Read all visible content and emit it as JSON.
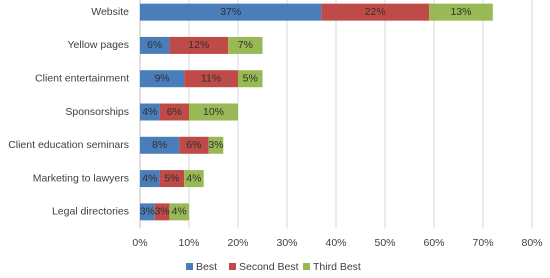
{
  "chart_data": {
    "type": "stacked-bar-horizontal",
    "categories": [
      "Website",
      "Yellow pages",
      "Client entertainment",
      "Sponsorships",
      "Client education seminars",
      "Marketing to lawyers",
      "Legal directories"
    ],
    "series": [
      {
        "name": "Best",
        "color": "#4a7ebb",
        "values": [
          37,
          6,
          9,
          4,
          8,
          4,
          3
        ],
        "value_labels": [
          "37%",
          "6%",
          "9%",
          "4%",
          "8%",
          "4%",
          "3%"
        ]
      },
      {
        "name": "Second Best",
        "color": "#be4b48",
        "values": [
          22,
          12,
          11,
          6,
          6,
          5,
          3
        ],
        "value_labels": [
          "22%",
          "12%",
          "11%",
          "6%",
          "6%",
          "5%",
          "3%"
        ]
      },
      {
        "name": "Third Best",
        "color": "#98b954",
        "values": [
          13,
          7,
          5,
          10,
          3,
          4,
          4
        ],
        "value_labels": [
          "13%",
          "7%",
          "5%",
          "10%",
          "3%",
          "4%",
          "4%"
        ]
      }
    ],
    "xlim": [
      0,
      80
    ],
    "xticks": [
      {
        "value": 0,
        "label": "0%"
      },
      {
        "value": 10,
        "label": "10%"
      },
      {
        "value": 20,
        "label": "20%"
      },
      {
        "value": 30,
        "label": "30%"
      },
      {
        "value": 40,
        "label": "40%"
      },
      {
        "value": 50,
        "label": "50%"
      },
      {
        "value": 60,
        "label": "60%"
      },
      {
        "value": 70,
        "label": "70%"
      },
      {
        "value": 80,
        "label": "80%"
      }
    ],
    "grid": true,
    "legend": "bottom"
  }
}
